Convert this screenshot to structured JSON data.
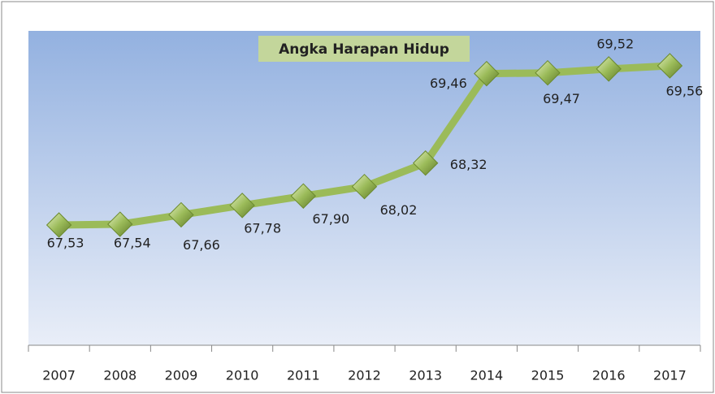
{
  "chart_data": {
    "type": "line",
    "title": "Angka Harapan Hidup",
    "categories": [
      "2007",
      "2008",
      "2009",
      "2010",
      "2011",
      "2012",
      "2013",
      "2014",
      "2015",
      "2016",
      "2017"
    ],
    "series": [
      {
        "name": "Angka Harapan Hidup",
        "color": "#9bbb59",
        "values": [
          67.53,
          67.54,
          67.66,
          67.78,
          67.9,
          68.02,
          68.32,
          69.46,
          69.47,
          69.52,
          69.56
        ],
        "value_labels": [
          "67,53",
          "67,54",
          "67,66",
          "67,78",
          "67,90",
          "68,02",
          "68,32",
          "69,46",
          "69,47",
          "69,52",
          "69,56"
        ]
      }
    ]
  }
}
